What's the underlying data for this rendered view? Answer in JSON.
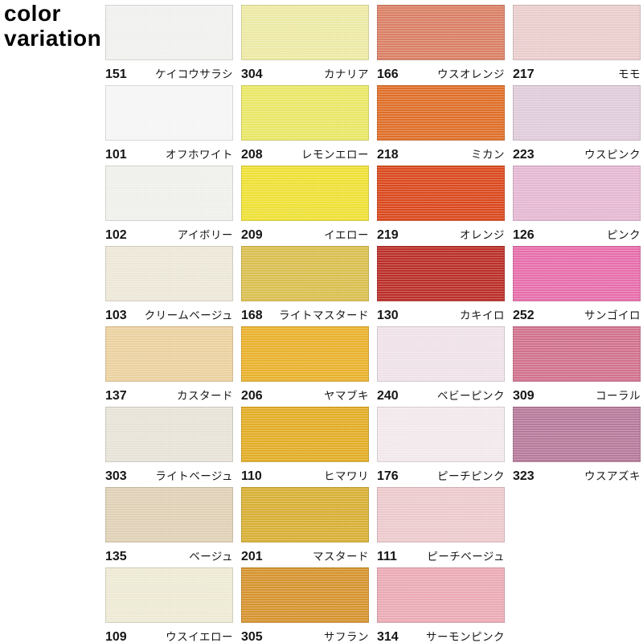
{
  "title": {
    "line1": "color",
    "line2": "variation"
  },
  "grid": {
    "columns": 4,
    "rows": 8,
    "cells": [
      {
        "code": "151",
        "name": "ケイコウサラシ",
        "color": "#f3f4f1"
      },
      {
        "code": "304",
        "name": "カナリア",
        "color": "#efeca6"
      },
      {
        "code": "166",
        "name": "ウスオレンジ",
        "color": "#dc8166"
      },
      {
        "code": "217",
        "name": "モモ",
        "color": "#ecd0cf"
      },
      {
        "code": "101",
        "name": "オフホワイト",
        "color": "#f8f8f8"
      },
      {
        "code": "208",
        "name": "レモンエロー",
        "color": "#ece967"
      },
      {
        "code": "218",
        "name": "ミカン",
        "color": "#e1702a"
      },
      {
        "code": "223",
        "name": "ウスピンク",
        "color": "#e2cedd"
      },
      {
        "code": "102",
        "name": "アイボリー",
        "color": "#f2f2ee"
      },
      {
        "code": "209",
        "name": "イエロー",
        "color": "#f1e336"
      },
      {
        "code": "219",
        "name": "オレンジ",
        "color": "#dc4a1e"
      },
      {
        "code": "126",
        "name": "ピンク",
        "color": "#e7bad5"
      },
      {
        "code": "103",
        "name": "クリームベージュ",
        "color": "#efead9"
      },
      {
        "code": "168",
        "name": "ライトマスタード",
        "color": "#dcc150"
      },
      {
        "code": "130",
        "name": "カキイロ",
        "color": "#bc2f29"
      },
      {
        "code": "252",
        "name": "サンゴイロ",
        "color": "#e96fad"
      },
      {
        "code": "137",
        "name": "カスタード",
        "color": "#eed3a1"
      },
      {
        "code": "206",
        "name": "ヤマブキ",
        "color": "#ecb32d"
      },
      {
        "code": "240",
        "name": "ベビーピンク",
        "color": "#f2e4ec"
      },
      {
        "code": "309",
        "name": "コーラル",
        "color": "#d3738f"
      },
      {
        "code": "303",
        "name": "ライトベージュ",
        "color": "#eae5da"
      },
      {
        "code": "110",
        "name": "ヒマワリ",
        "color": "#e4af26"
      },
      {
        "code": "176",
        "name": "ピーチピンク",
        "color": "#f5ebee"
      },
      {
        "code": "323",
        "name": "ウスアズキ",
        "color": "#b87b9c"
      },
      {
        "code": "135",
        "name": "ベージュ",
        "color": "#e2d3b8"
      },
      {
        "code": "201",
        "name": "マスタード",
        "color": "#dab135"
      },
      {
        "code": "111",
        "name": "ピーチベージュ",
        "color": "#efcccf"
      },
      null,
      {
        "code": "109",
        "name": "ウスイエロー",
        "color": "#f0ecd6"
      },
      {
        "code": "305",
        "name": "サフラン",
        "color": "#d8952f"
      },
      {
        "code": "314",
        "name": "サーモンピンク",
        "color": "#edacb7"
      },
      null
    ]
  }
}
